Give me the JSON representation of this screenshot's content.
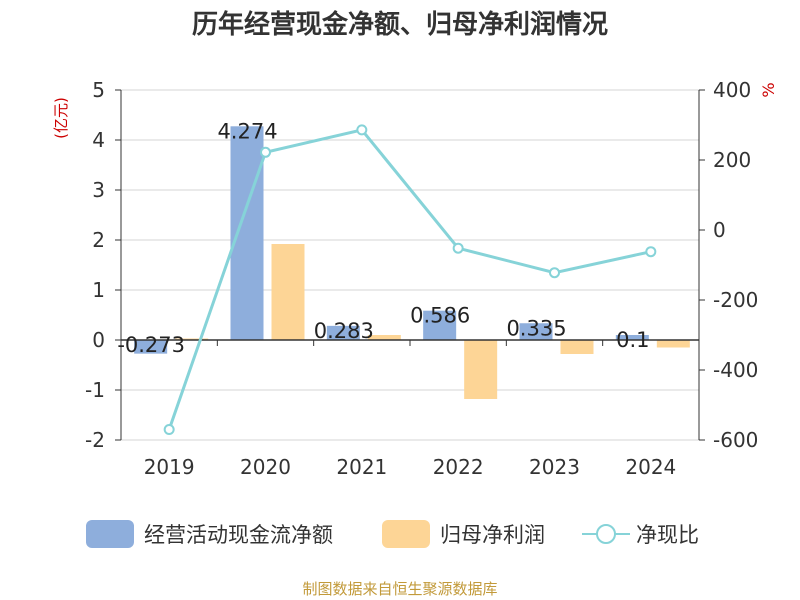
{
  "title": "历年经营现金净额、归母净利润情况",
  "source": "制图数据来自恒生聚源数据库",
  "colors": {
    "cash": "#8eaedc",
    "profit": "#fdd596",
    "ratio": "#86d3d8",
    "left_unit": "#cc0000",
    "right_unit": "#cc0000",
    "source": "#c29a3a"
  },
  "chart_data": {
    "type": "bar",
    "categories": [
      "2019",
      "2020",
      "2021",
      "2022",
      "2023",
      "2024"
    ],
    "left_axis": {
      "unit": "(亿元)",
      "ylim": [
        -2,
        5
      ],
      "ticks": [
        -2,
        -1,
        0,
        1,
        2,
        3,
        4,
        5
      ]
    },
    "right_axis": {
      "unit": "%",
      "ylim": [
        -600,
        400
      ],
      "ticks": [
        -600,
        -400,
        -200,
        0,
        200,
        400
      ]
    },
    "series": [
      {
        "name": "经营活动现金流净额",
        "type": "bar",
        "axis": "left",
        "values": [
          -0.273,
          4.274,
          0.283,
          0.586,
          0.335,
          0.1
        ],
        "labels": [
          "-0.273",
          "4.274",
          "0.283",
          "0.586",
          "0.335",
          "0.1"
        ]
      },
      {
        "name": "归母净利润",
        "type": "bar",
        "axis": "left",
        "values": [
          0.03,
          1.92,
          0.1,
          -1.18,
          -0.28,
          -0.15
        ]
      },
      {
        "name": "净现比",
        "type": "line",
        "axis": "right",
        "values": [
          -570,
          222,
          286,
          -52,
          -122,
          -62
        ]
      }
    ],
    "grid": true,
    "legend": "bottom"
  }
}
